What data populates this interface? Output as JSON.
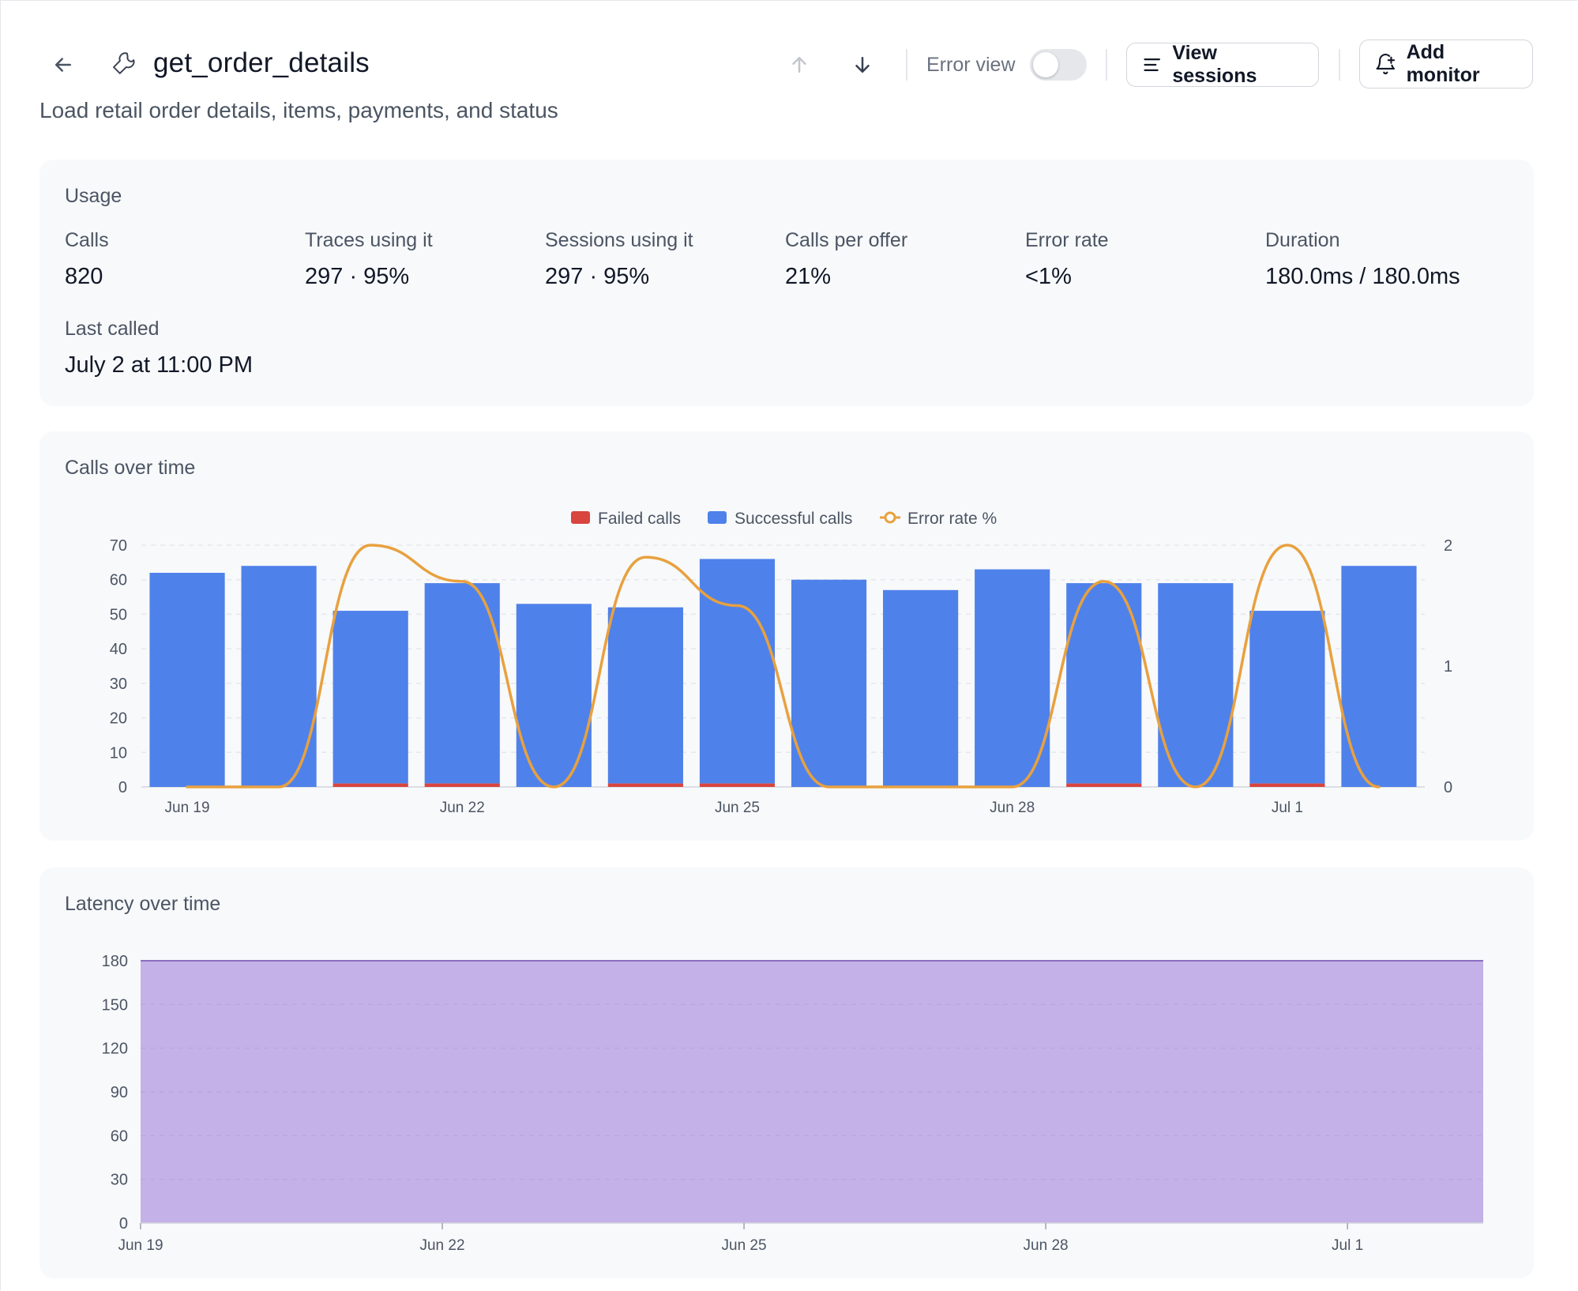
{
  "header": {
    "title": "get_order_details",
    "subtitle": "Load retail order details, items, payments, and status",
    "error_view_label": "Error view",
    "view_sessions_label": "View sessions",
    "add_monitor_label": "Add monitor",
    "error_view_on": false
  },
  "usage": {
    "section_label": "Usage",
    "stats": [
      {
        "label": "Calls",
        "value": "820"
      },
      {
        "label": "Traces using it",
        "value": "297 · 95%"
      },
      {
        "label": "Sessions using it",
        "value": "297 · 95%"
      },
      {
        "label": "Calls per offer",
        "value": "21%"
      },
      {
        "label": "Error rate",
        "value": "<1%"
      },
      {
        "label": "Duration",
        "value": "180.0ms / 180.0ms"
      }
    ],
    "last_called_label": "Last called",
    "last_called_value": "July 2 at 11:00 PM"
  },
  "calls_chart": {
    "title": "Calls over time",
    "legend": [
      "Failed calls",
      "Successful calls",
      "Error rate %"
    ]
  },
  "latency_chart": {
    "title": "Latency over time"
  },
  "colors": {
    "failed": "#d9453f",
    "successful": "#4f81ea",
    "error_rate": "#e8a13f",
    "latency_fill": "#c4b1e7",
    "latency_line": "#8b6fc0"
  },
  "chart_data": [
    {
      "type": "bar",
      "title": "Calls over time",
      "categories": [
        "Jun 19",
        "Jun 20",
        "Jun 21",
        "Jun 22",
        "Jun 23",
        "Jun 24",
        "Jun 25",
        "Jun 26",
        "Jun 27",
        "Jun 28",
        "Jun 29",
        "Jun 30",
        "Jul 1",
        "Jul 2"
      ],
      "x_tick_labels": [
        "Jun 19",
        "Jun 22",
        "Jun 25",
        "Jun 28",
        "Jul 1"
      ],
      "series": [
        {
          "name": "Failed calls",
          "values": [
            0,
            0,
            1,
            1,
            0,
            1,
            1,
            0,
            0,
            0,
            1,
            0,
            1,
            0
          ]
        },
        {
          "name": "Successful calls",
          "values": [
            62,
            64,
            50,
            58,
            53,
            51,
            65,
            60,
            57,
            63,
            58,
            59,
            50,
            64
          ]
        },
        {
          "name": "Error rate %",
          "axis": "right",
          "values": [
            0,
            0,
            2,
            1.7,
            0,
            1.9,
            1.5,
            0,
            0,
            0,
            1.7,
            0,
            2,
            0
          ]
        }
      ],
      "stacked": true,
      "ylim": [
        0,
        70
      ],
      "y_ticks": [
        0,
        10,
        20,
        30,
        40,
        50,
        60,
        70
      ],
      "y2lim": [
        0,
        2
      ],
      "y2_ticks": [
        0,
        1,
        2
      ],
      "legend_position": "top-center",
      "grid": true
    },
    {
      "type": "area",
      "title": "Latency over time",
      "x": [
        "Jun 19",
        "Jun 20",
        "Jun 21",
        "Jun 22",
        "Jun 23",
        "Jun 24",
        "Jun 25",
        "Jun 26",
        "Jun 27",
        "Jun 28",
        "Jun 29",
        "Jun 30",
        "Jul 1",
        "Jul 2"
      ],
      "x_tick_labels": [
        "Jun 19",
        "Jun 22",
        "Jun 25",
        "Jun 28",
        "Jul 1"
      ],
      "series": [
        {
          "values": [
            180,
            180,
            180,
            180,
            180,
            180,
            180,
            180,
            180,
            180,
            180,
            180,
            180,
            180
          ]
        }
      ],
      "ylim": [
        0,
        180
      ],
      "y_ticks": [
        0,
        30,
        60,
        90,
        120,
        150,
        180
      ],
      "grid": true
    }
  ]
}
